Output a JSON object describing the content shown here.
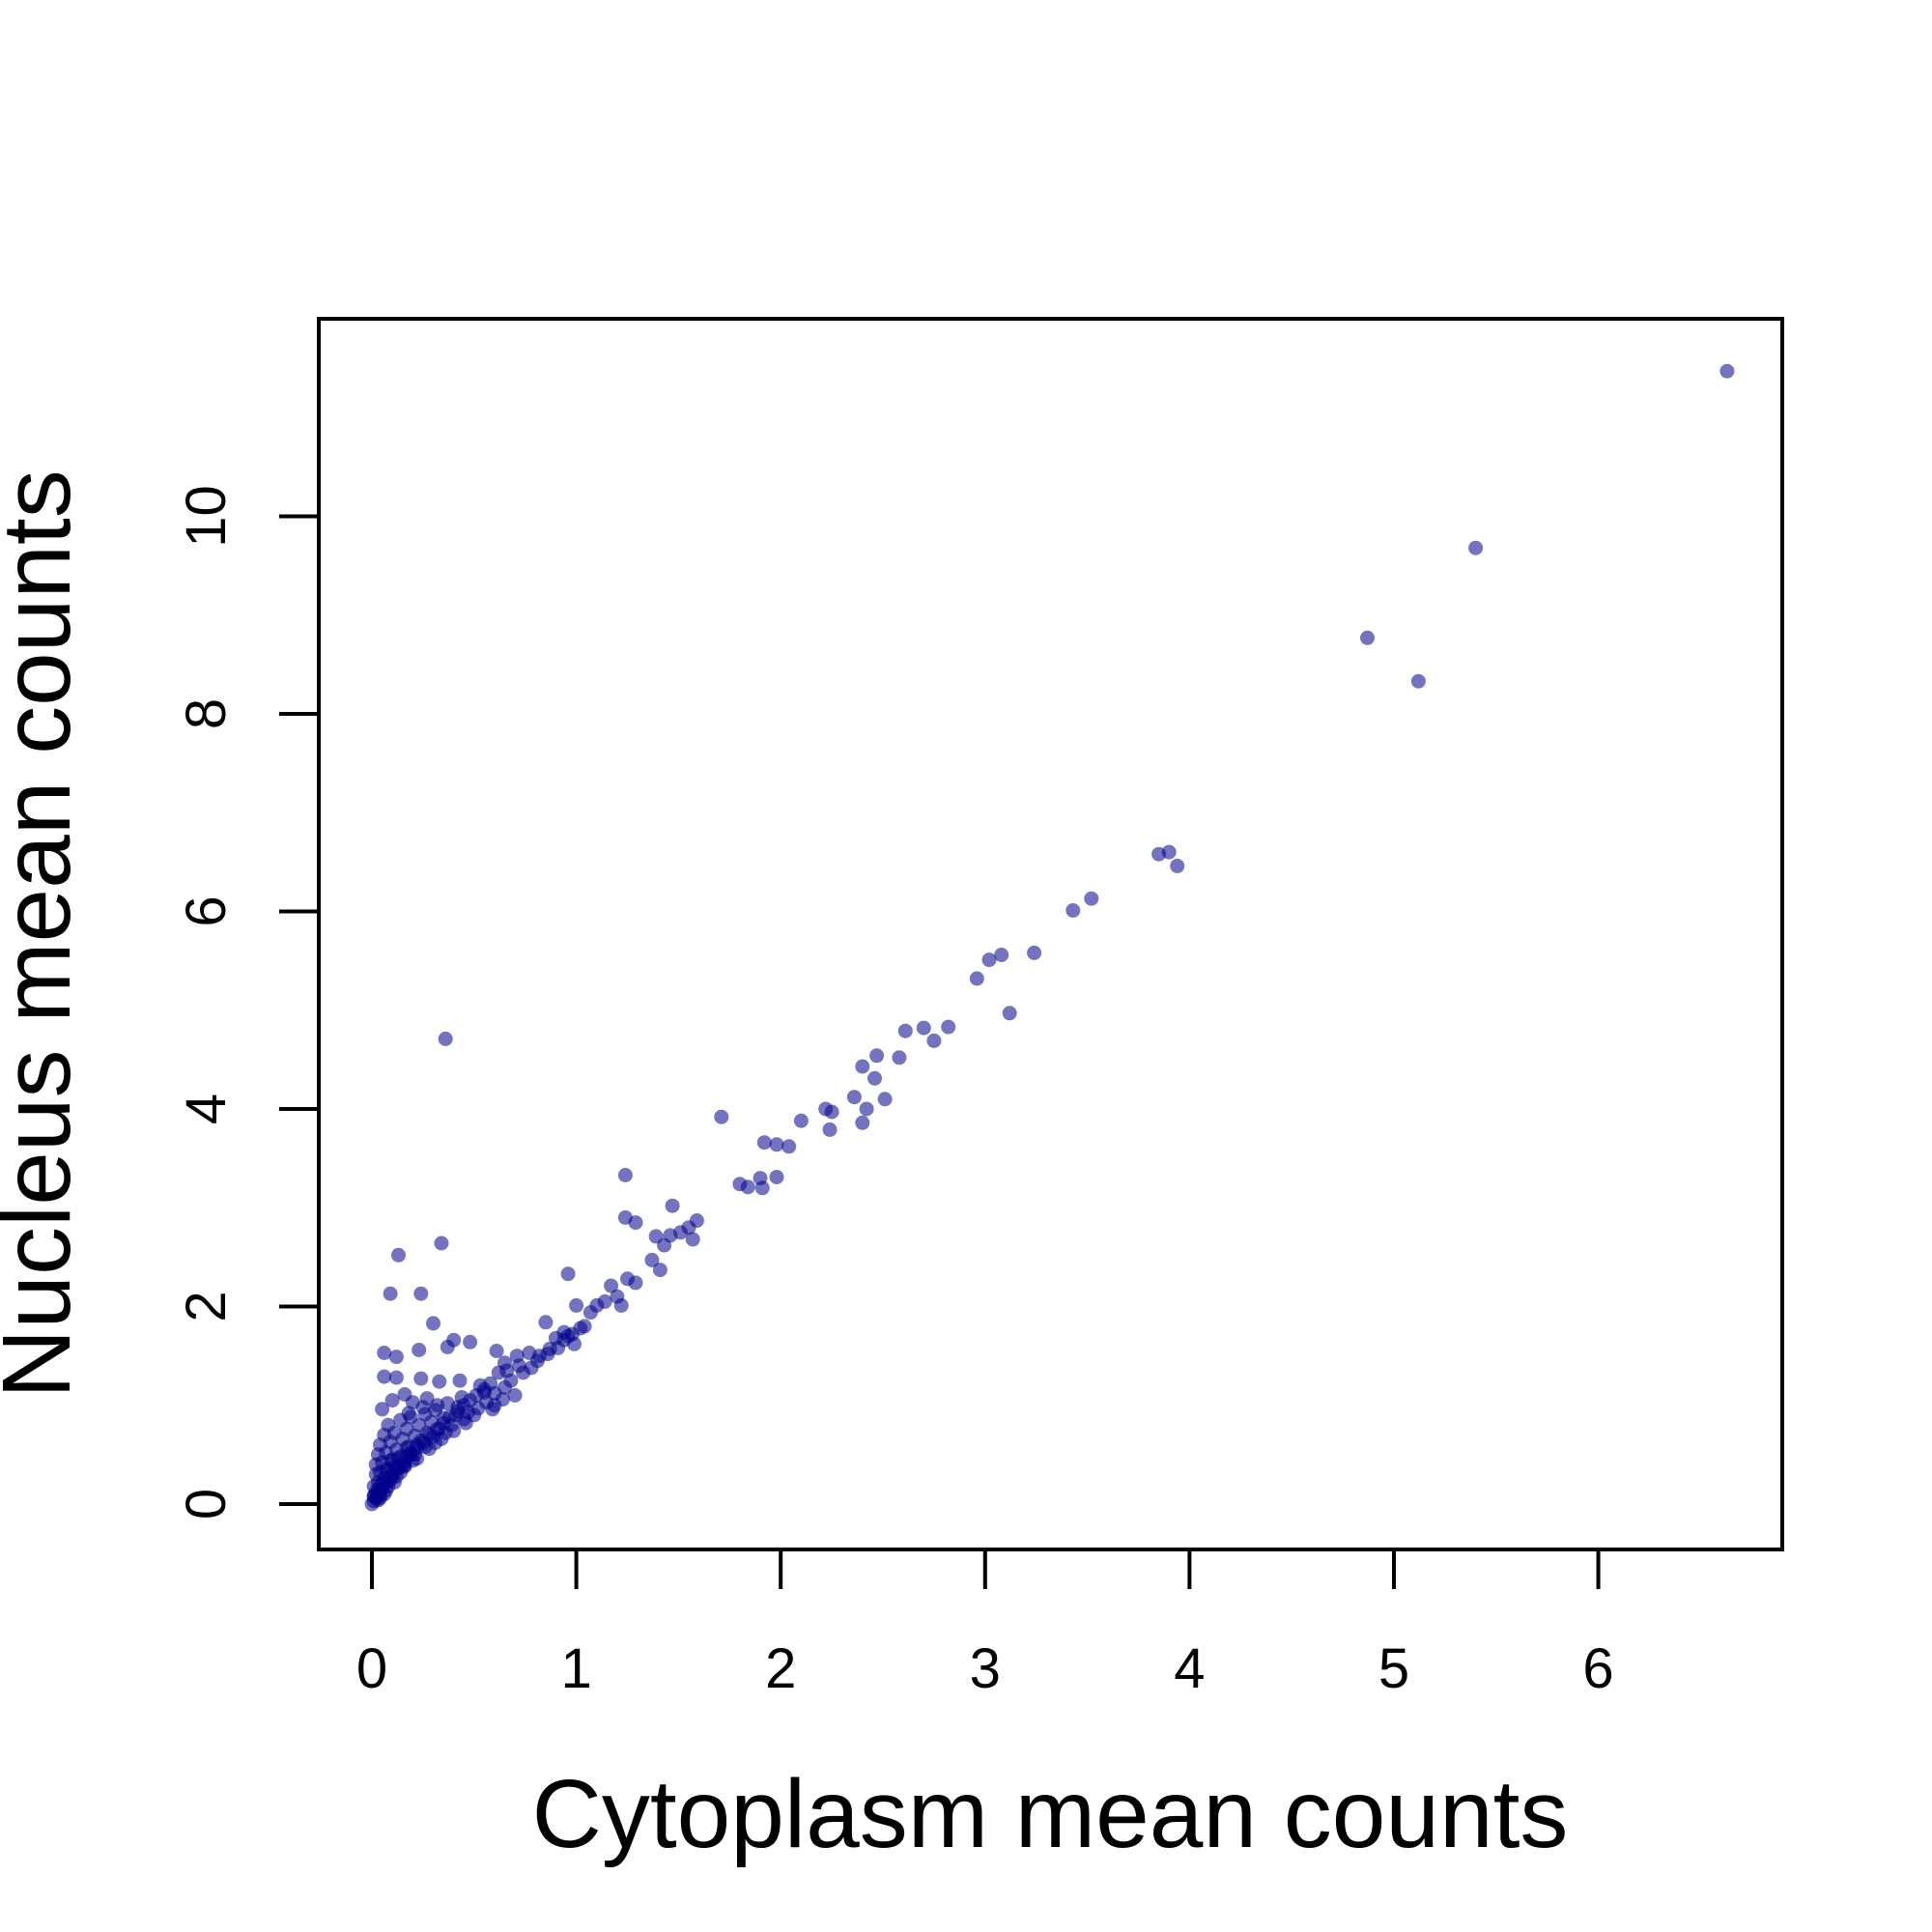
{
  "chart_data": {
    "type": "scatter",
    "xlabel": "Cytoplasm mean counts",
    "ylabel": "Nucleus mean counts",
    "xlim": [
      -0.26,
      6.9
    ],
    "ylim": [
      -0.46,
      12.0
    ],
    "xticks": [
      0,
      1,
      2,
      3,
      4,
      5,
      6
    ],
    "yticks": [
      0,
      2,
      4,
      6,
      8,
      10
    ],
    "point_color": "#00008B",
    "point_opacity": 0.55,
    "grid": false,
    "legend": "none",
    "series": [
      {
        "points": [
          [
            6.63,
            11.47
          ],
          [
            5.4,
            9.68
          ],
          [
            4.87,
            8.77
          ],
          [
            5.12,
            8.33
          ],
          [
            3.85,
            6.58
          ],
          [
            3.9,
            6.6
          ],
          [
            3.94,
            6.46
          ],
          [
            3.43,
            6.01
          ],
          [
            3.52,
            6.13
          ],
          [
            2.96,
            5.32
          ],
          [
            3.02,
            5.51
          ],
          [
            3.08,
            5.56
          ],
          [
            3.24,
            5.58
          ],
          [
            3.12,
            4.97
          ],
          [
            2.61,
            4.79
          ],
          [
            2.7,
            4.82
          ],
          [
            2.82,
            4.83
          ],
          [
            2.75,
            4.69
          ],
          [
            2.47,
            4.54
          ],
          [
            2.4,
            4.43
          ],
          [
            2.58,
            4.52
          ],
          [
            2.46,
            4.31
          ],
          [
            2.36,
            4.12
          ],
          [
            2.51,
            4.1
          ],
          [
            2.42,
            4.0
          ],
          [
            2.22,
            4.0
          ],
          [
            2.25,
            3.97
          ],
          [
            2.24,
            3.79
          ],
          [
            2.4,
            3.86
          ],
          [
            2.1,
            3.88
          ],
          [
            1.71,
            3.92
          ],
          [
            1.92,
            3.66
          ],
          [
            1.98,
            3.64
          ],
          [
            2.04,
            3.62
          ],
          [
            1.9,
            3.3
          ],
          [
            1.98,
            3.31
          ],
          [
            1.8,
            3.24
          ],
          [
            1.84,
            3.21
          ],
          [
            1.91,
            3.2
          ],
          [
            1.24,
            3.33
          ],
          [
            1.47,
            3.02
          ],
          [
            1.24,
            2.9
          ],
          [
            1.29,
            2.85
          ],
          [
            1.59,
            2.87
          ],
          [
            1.55,
            2.8
          ],
          [
            1.51,
            2.75
          ],
          [
            1.46,
            2.72
          ],
          [
            1.39,
            2.71
          ],
          [
            1.57,
            2.68
          ],
          [
            1.43,
            2.62
          ],
          [
            1.37,
            2.47
          ],
          [
            1.41,
            2.37
          ],
          [
            1.25,
            2.28
          ],
          [
            1.29,
            2.24
          ],
          [
            1.2,
            2.1
          ],
          [
            1.17,
            2.21
          ],
          [
            1.14,
            2.05
          ],
          [
            1.1,
            2.01
          ],
          [
            1.22,
            2.01
          ],
          [
            0.96,
            2.33
          ],
          [
            1.07,
            1.94
          ],
          [
            1.0,
            2.01
          ],
          [
            1.04,
            1.8
          ],
          [
            0.94,
            1.74
          ],
          [
            0.96,
            1.7
          ],
          [
            0.9,
            1.68
          ],
          [
            0.85,
            1.84
          ],
          [
            0.99,
            1.62
          ],
          [
            0.87,
            1.57
          ],
          [
            0.82,
            1.5
          ],
          [
            0.77,
            1.53
          ],
          [
            0.72,
            1.4
          ],
          [
            0.71,
            1.5
          ],
          [
            0.66,
            1.35
          ],
          [
            0.62,
            1.33
          ],
          [
            0.58,
            1.22
          ],
          [
            0.55,
            1.16
          ],
          [
            0.51,
            1.1
          ],
          [
            0.48,
            1.05
          ],
          [
            0.45,
            1.0
          ],
          [
            0.42,
            0.94
          ],
          [
            0.38,
            0.88
          ],
          [
            0.35,
            0.82
          ],
          [
            0.32,
            0.76
          ],
          [
            0.28,
            0.7
          ],
          [
            0.25,
            0.62
          ],
          [
            0.22,
            0.57
          ],
          [
            0.19,
            0.5
          ],
          [
            0.16,
            0.43
          ],
          [
            0.13,
            0.36
          ],
          [
            0.1,
            0.3
          ],
          [
            0.07,
            0.22
          ],
          [
            0.05,
            0.16
          ],
          [
            0.03,
            0.1
          ],
          [
            0.02,
            0.06
          ],
          [
            0.01,
            0.03
          ],
          [
            0.0,
            0.0
          ],
          [
            0.01,
            0.08
          ],
          [
            0.36,
            4.71
          ],
          [
            0.34,
            2.64
          ],
          [
            0.13,
            2.52
          ],
          [
            0.24,
            2.13
          ],
          [
            0.09,
            2.13
          ],
          [
            0.3,
            1.83
          ],
          [
            0.4,
            1.66
          ],
          [
            0.48,
            1.64
          ],
          [
            0.37,
            1.59
          ],
          [
            0.23,
            1.56
          ],
          [
            0.06,
            1.53
          ],
          [
            0.12,
            1.49
          ],
          [
            0.61,
            1.55
          ],
          [
            0.65,
            1.43
          ],
          [
            0.06,
            1.29
          ],
          [
            0.12,
            1.28
          ],
          [
            0.24,
            1.27
          ],
          [
            0.33,
            1.24
          ],
          [
            0.43,
            1.25
          ],
          [
            0.16,
            1.11
          ],
          [
            0.1,
            1.05
          ],
          [
            0.05,
            0.96
          ],
          [
            0.2,
            1.03
          ],
          [
            0.27,
            1.07
          ],
          [
            0.53,
            1.2
          ],
          [
            0.6,
            1.12
          ],
          [
            0.64,
            1.06
          ],
          [
            0.7,
            1.1
          ],
          [
            0.59,
            0.96
          ],
          [
            0.5,
            0.9
          ],
          [
            0.46,
            0.82
          ],
          [
            0.4,
            0.74
          ],
          [
            0.34,
            0.66
          ],
          [
            0.28,
            0.56
          ],
          [
            0.22,
            0.46
          ],
          [
            0.16,
            0.38
          ],
          [
            0.12,
            0.28
          ],
          [
            0.08,
            0.18
          ],
          [
            0.04,
            0.09
          ],
          [
            0.08,
            0.8
          ],
          [
            0.14,
            0.85
          ],
          [
            0.19,
            0.88
          ],
          [
            0.26,
            0.91
          ],
          [
            0.31,
            0.95
          ],
          [
            0.37,
            1.02
          ],
          [
            0.44,
            1.08
          ],
          [
            0.56,
            1.03
          ],
          [
            0.52,
            0.97
          ],
          [
            0.6,
            1.0
          ],
          [
            0.06,
            0.7
          ],
          [
            0.11,
            0.72
          ],
          [
            0.17,
            0.76
          ],
          [
            0.23,
            0.8
          ],
          [
            0.29,
            0.83
          ],
          [
            0.35,
            0.87
          ],
          [
            0.41,
            0.9
          ],
          [
            0.47,
            0.93
          ],
          [
            0.39,
            0.8
          ],
          [
            0.45,
            0.86
          ],
          [
            0.04,
            0.6
          ],
          [
            0.09,
            0.63
          ],
          [
            0.15,
            0.66
          ],
          [
            0.21,
            0.69
          ],
          [
            0.27,
            0.72
          ],
          [
            0.33,
            0.76
          ],
          [
            0.24,
            0.64
          ],
          [
            0.3,
            0.68
          ],
          [
            0.36,
            0.72
          ],
          [
            0.18,
            0.58
          ],
          [
            0.03,
            0.5
          ],
          [
            0.07,
            0.52
          ],
          [
            0.12,
            0.55
          ],
          [
            0.17,
            0.57
          ],
          [
            0.22,
            0.6
          ],
          [
            0.26,
            0.58
          ],
          [
            0.31,
            0.62
          ],
          [
            0.14,
            0.48
          ],
          [
            0.19,
            0.52
          ],
          [
            0.1,
            0.45
          ],
          [
            0.02,
            0.4
          ],
          [
            0.05,
            0.42
          ],
          [
            0.09,
            0.44
          ],
          [
            0.13,
            0.46
          ],
          [
            0.17,
            0.48
          ],
          [
            0.21,
            0.5
          ],
          [
            0.11,
            0.38
          ],
          [
            0.15,
            0.4
          ],
          [
            0.07,
            0.35
          ],
          [
            0.2,
            0.44
          ],
          [
            0.02,
            0.3
          ],
          [
            0.04,
            0.32
          ],
          [
            0.08,
            0.34
          ],
          [
            0.12,
            0.36
          ],
          [
            0.16,
            0.39
          ],
          [
            0.06,
            0.26
          ],
          [
            0.1,
            0.28
          ],
          [
            0.14,
            0.32
          ],
          [
            0.03,
            0.22
          ],
          [
            0.09,
            0.24
          ],
          [
            0.01,
            0.18
          ],
          [
            0.03,
            0.15
          ],
          [
            0.05,
            0.2
          ],
          [
            0.07,
            0.14
          ],
          [
            0.11,
            0.22
          ],
          [
            0.02,
            0.12
          ],
          [
            0.04,
            0.06
          ],
          [
            0.06,
            0.1
          ],
          [
            0.01,
            0.08
          ],
          [
            0.03,
            0.04
          ],
          [
            0.18,
            0.92
          ],
          [
            0.25,
            0.98
          ],
          [
            0.32,
            1.0
          ],
          [
            0.42,
            0.98
          ],
          [
            0.55,
            1.13
          ],
          [
            0.65,
            1.18
          ],
          [
            0.68,
            1.25
          ],
          [
            0.74,
            1.33
          ],
          [
            0.78,
            1.38
          ],
          [
            0.81,
            1.45
          ],
          [
            0.86,
            1.52
          ],
          [
            0.91,
            1.58
          ],
          [
            0.94,
            1.66
          ],
          [
            0.98,
            1.72
          ],
          [
            1.02,
            1.78
          ]
        ]
      }
    ]
  }
}
